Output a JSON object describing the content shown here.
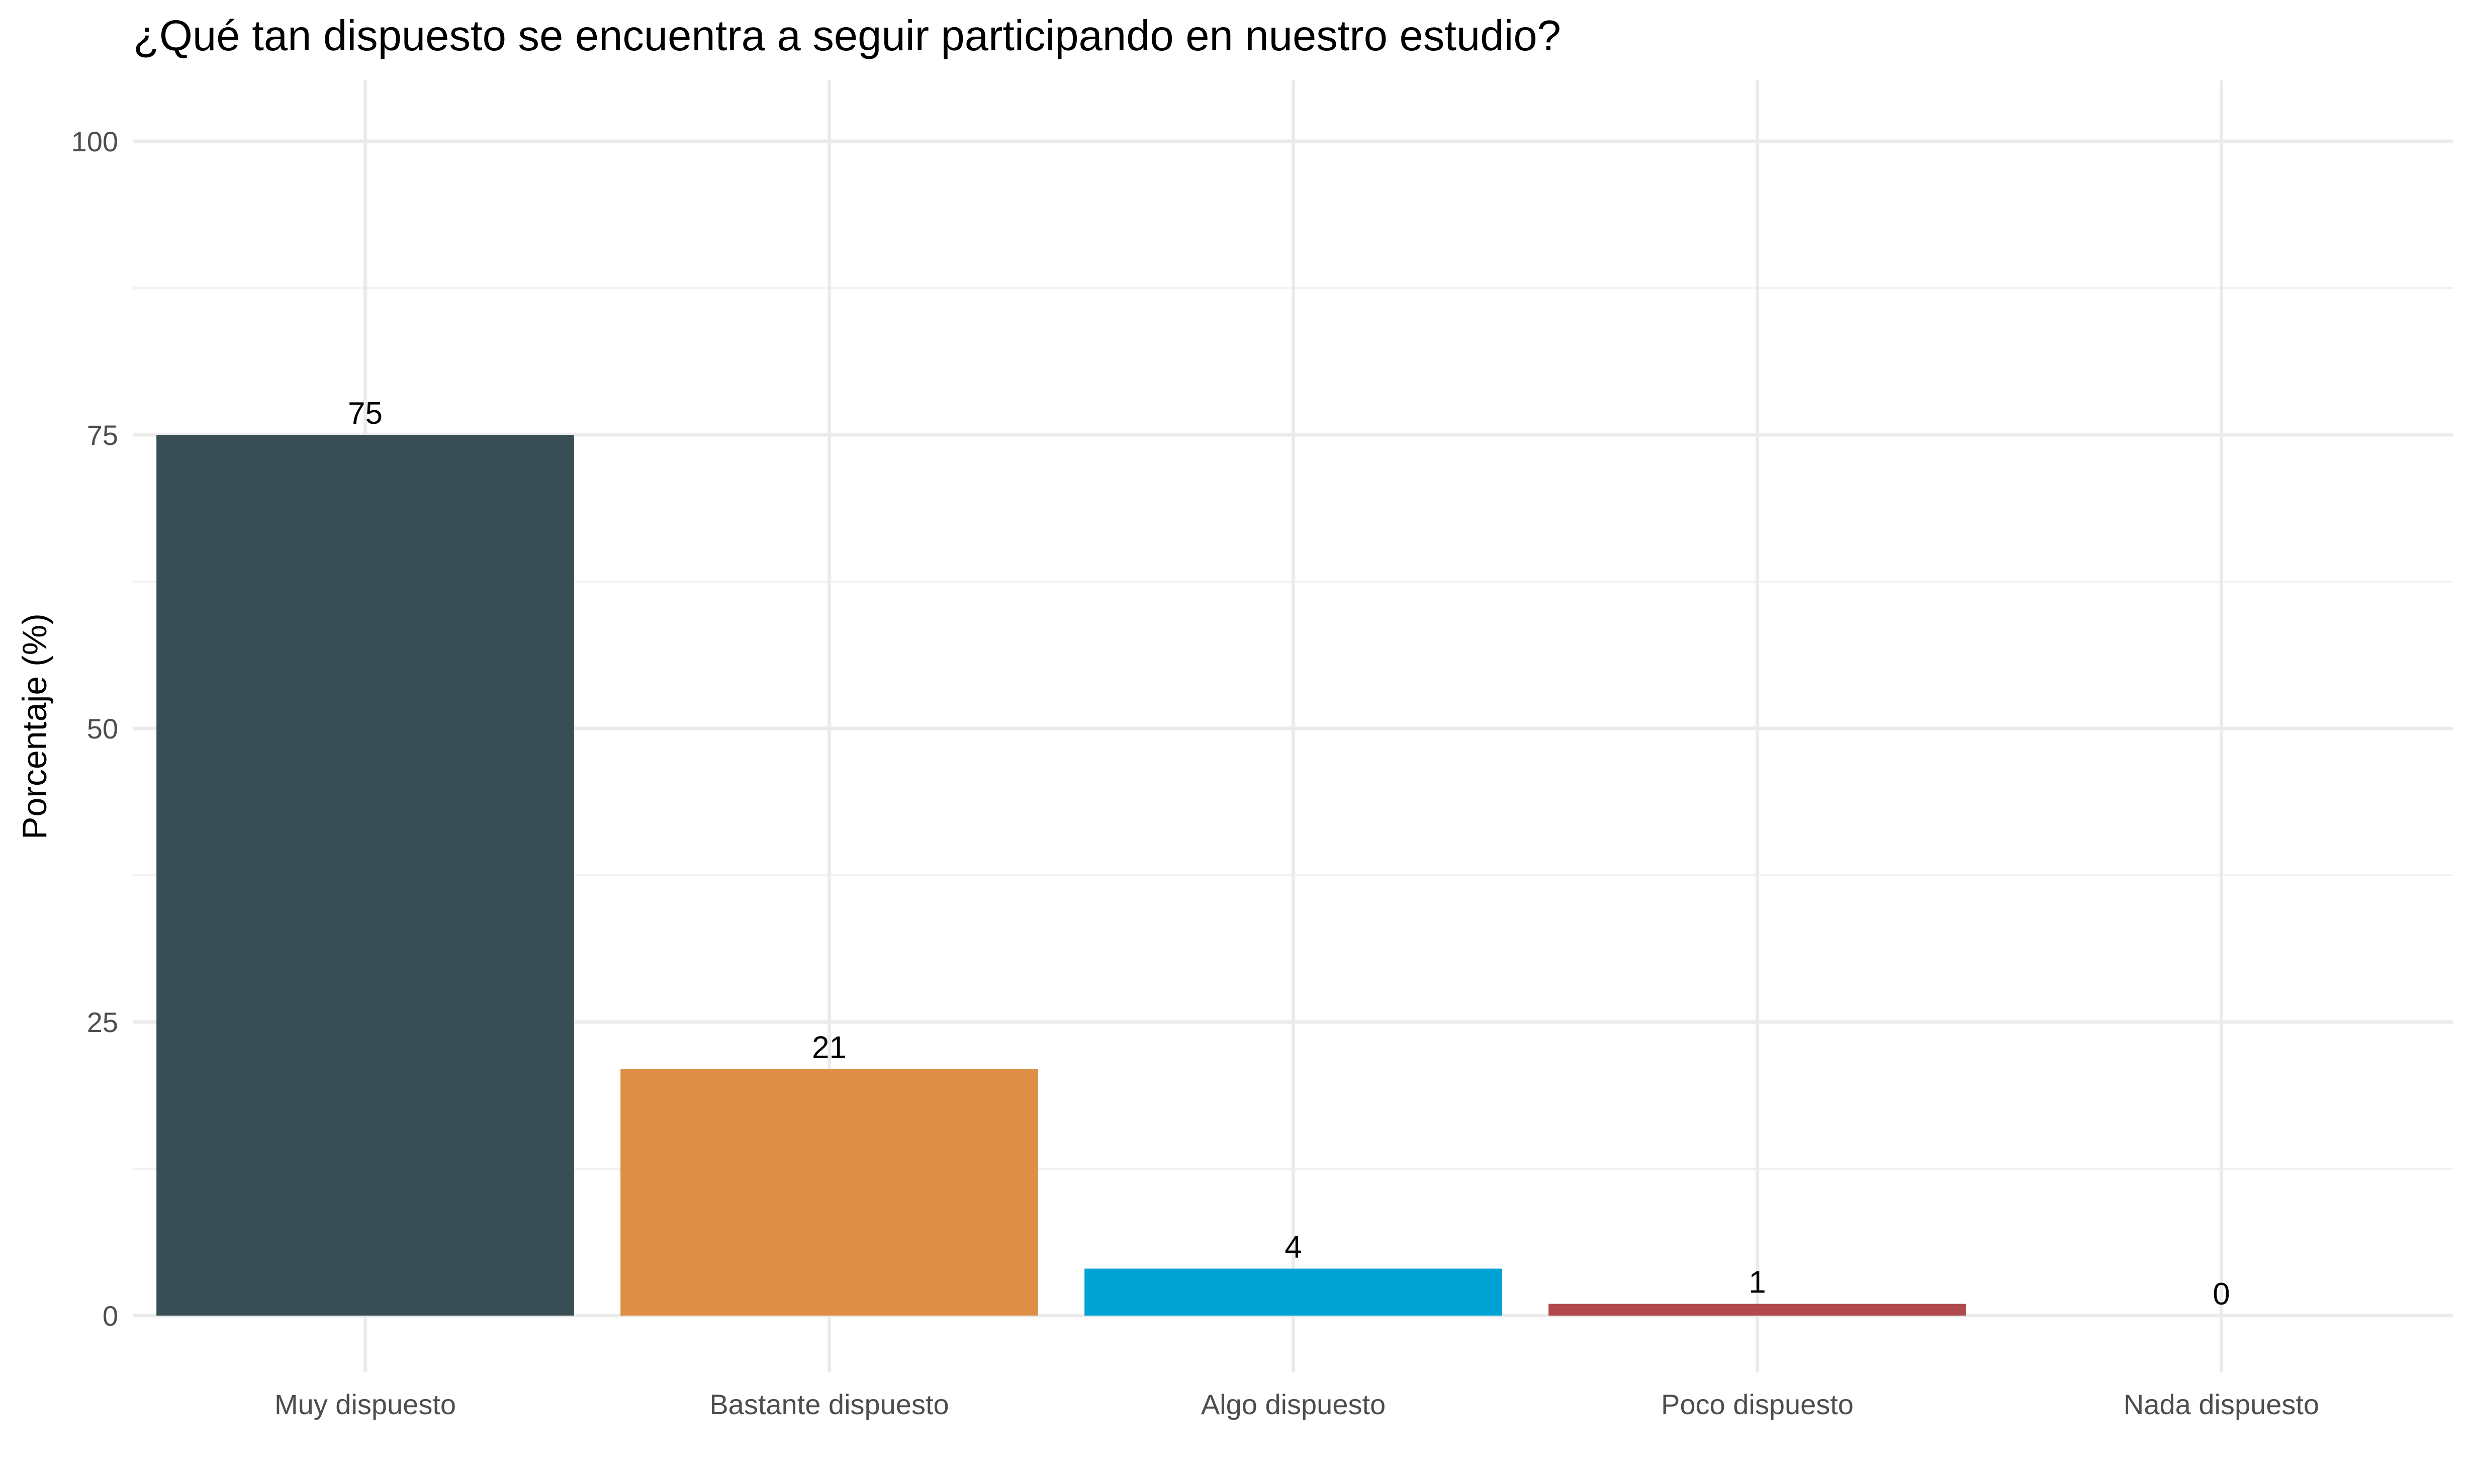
{
  "chart_data": {
    "type": "bar",
    "title": "¿Qué tan dispuesto se encuentra a seguir participando en nuestro estudio?",
    "xlabel": "",
    "ylabel": "Porcentaje (%)",
    "categories": [
      "Muy dispuesto",
      "Bastante dispuesto",
      "Algo dispuesto",
      "Poco dispuesto",
      "Nada dispuesto"
    ],
    "values": [
      75,
      21,
      4,
      1,
      0
    ],
    "data_labels": [
      "75",
      "21",
      "4",
      "1",
      "0"
    ],
    "colors": [
      "#384E54",
      "#DE8F45",
      "#00A2D3",
      "#B04A4C",
      "#7A7A7A"
    ],
    "ylim": [
      0,
      100
    ],
    "yticks": [
      0,
      25,
      50,
      75,
      100
    ],
    "ytick_labels": [
      "0",
      "25",
      "50",
      "75",
      "100"
    ],
    "grid": true,
    "legend": "none"
  }
}
